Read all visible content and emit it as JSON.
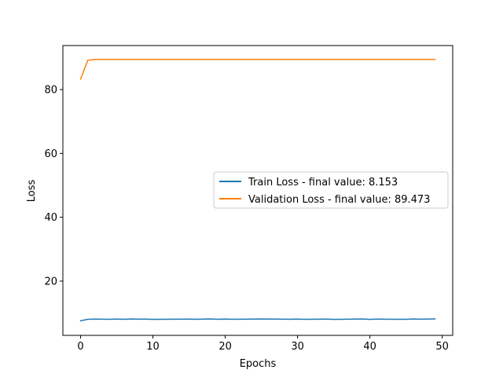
{
  "chart_data": {
    "type": "line",
    "title": "",
    "xlabel": "Epochs",
    "ylabel": "Loss",
    "xlim": [
      -2.45,
      51.45
    ],
    "ylim": [
      3.0,
      93.8
    ],
    "xticks": [
      0,
      10,
      20,
      30,
      40,
      50
    ],
    "yticks": [
      20,
      40,
      60,
      80
    ],
    "grid": false,
    "legend_position": "center-right",
    "series": [
      {
        "name": "Train Loss - final value: 8.153",
        "color": "#1f77b4",
        "x": [
          0,
          1,
          2,
          3,
          4,
          5,
          6,
          7,
          8,
          9,
          10,
          11,
          12,
          13,
          14,
          15,
          16,
          17,
          18,
          19,
          20,
          21,
          22,
          23,
          24,
          25,
          26,
          27,
          28,
          29,
          30,
          31,
          32,
          33,
          34,
          35,
          36,
          37,
          38,
          39,
          40,
          41,
          42,
          43,
          44,
          45,
          46,
          47,
          48,
          49
        ],
        "values": [
          7.55,
          8.05,
          8.1,
          8.08,
          8.06,
          8.1,
          8.03,
          8.15,
          8.08,
          8.1,
          8.02,
          8.06,
          8.04,
          8.08,
          8.07,
          8.12,
          8.03,
          8.09,
          8.13,
          8.06,
          8.1,
          8.04,
          8.08,
          8.07,
          8.12,
          8.14,
          8.1,
          8.11,
          8.08,
          8.06,
          8.09,
          8.05,
          8.03,
          8.07,
          8.1,
          8.02,
          8.05,
          8.08,
          8.09,
          8.15,
          8.0,
          8.12,
          8.07,
          8.05,
          8.03,
          8.06,
          8.14,
          8.08,
          8.09,
          8.153
        ]
      },
      {
        "name": "Validation Loss - final value: 89.473",
        "color": "#ff7f0e",
        "x": [
          0,
          1,
          2,
          3,
          4,
          5,
          6,
          7,
          8,
          9,
          10,
          11,
          12,
          13,
          14,
          15,
          16,
          17,
          18,
          19,
          20,
          21,
          22,
          23,
          24,
          25,
          26,
          27,
          28,
          29,
          30,
          31,
          32,
          33,
          34,
          35,
          36,
          37,
          38,
          39,
          40,
          41,
          42,
          43,
          44,
          45,
          46,
          47,
          48,
          49
        ],
        "values": [
          83.3,
          89.2,
          89.47,
          89.47,
          89.47,
          89.47,
          89.47,
          89.47,
          89.47,
          89.47,
          89.47,
          89.47,
          89.47,
          89.47,
          89.47,
          89.47,
          89.47,
          89.47,
          89.47,
          89.47,
          89.47,
          89.47,
          89.47,
          89.47,
          89.47,
          89.47,
          89.47,
          89.47,
          89.47,
          89.47,
          89.47,
          89.47,
          89.47,
          89.47,
          89.47,
          89.47,
          89.47,
          89.47,
          89.47,
          89.47,
          89.47,
          89.47,
          89.47,
          89.47,
          89.47,
          89.47,
          89.47,
          89.47,
          89.47,
          89.473
        ]
      }
    ]
  }
}
